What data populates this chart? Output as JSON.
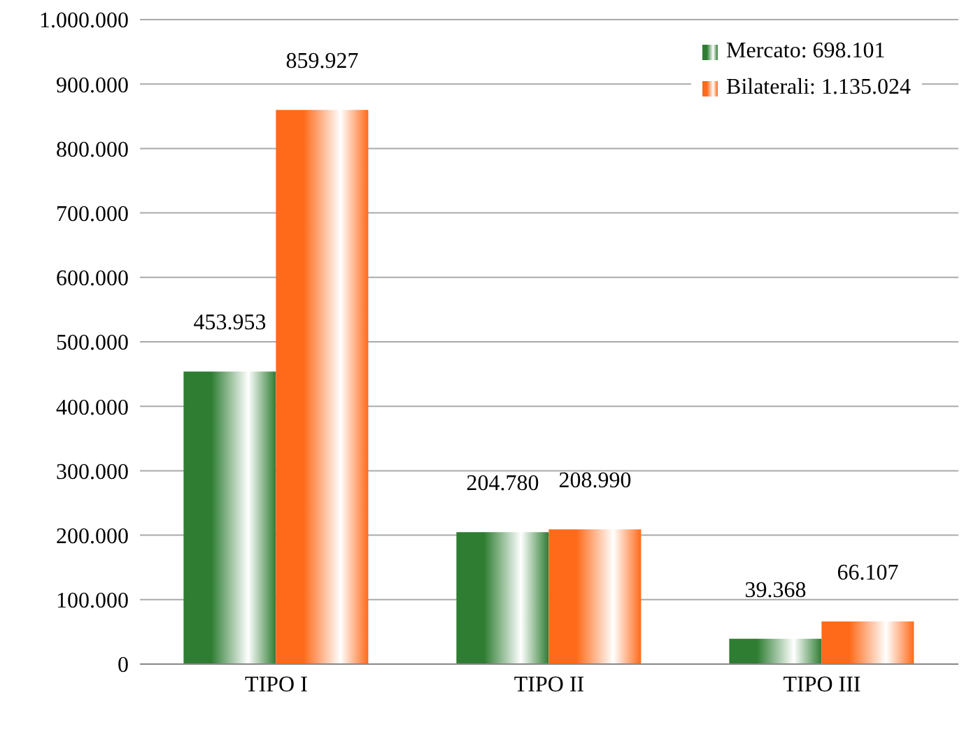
{
  "chart_data": {
    "type": "bar",
    "categories": [
      "TIPO I",
      "TIPO II",
      "TIPO III"
    ],
    "series": [
      {
        "name": "Mercato: 698.101",
        "color": "#2e7d32",
        "values": [
          453953,
          204780,
          39368
        ],
        "value_labels": [
          "453.953",
          "204.780",
          "39.368"
        ]
      },
      {
        "name": "Bilaterali: 1.135.024",
        "color": "#ff6a1a",
        "values": [
          859927,
          208990,
          66107
        ],
        "value_labels": [
          "859.927",
          "208.990",
          "66.107"
        ]
      }
    ],
    "ylim": [
      0,
      1000000
    ],
    "yticks": [
      {
        "value": 0,
        "label": "0"
      },
      {
        "value": 100000,
        "label": "100.000"
      },
      {
        "value": 200000,
        "label": "200.000"
      },
      {
        "value": 300000,
        "label": "300.000"
      },
      {
        "value": 400000,
        "label": "400.000"
      },
      {
        "value": 500000,
        "label": "500.000"
      },
      {
        "value": 600000,
        "label": "600.000"
      },
      {
        "value": 700000,
        "label": "700.000"
      },
      {
        "value": 800000,
        "label": "800.000"
      },
      {
        "value": 900000,
        "label": "900.000"
      },
      {
        "value": 1000000,
        "label": "1.000.000"
      }
    ],
    "grid": "y",
    "legend": "top right"
  }
}
